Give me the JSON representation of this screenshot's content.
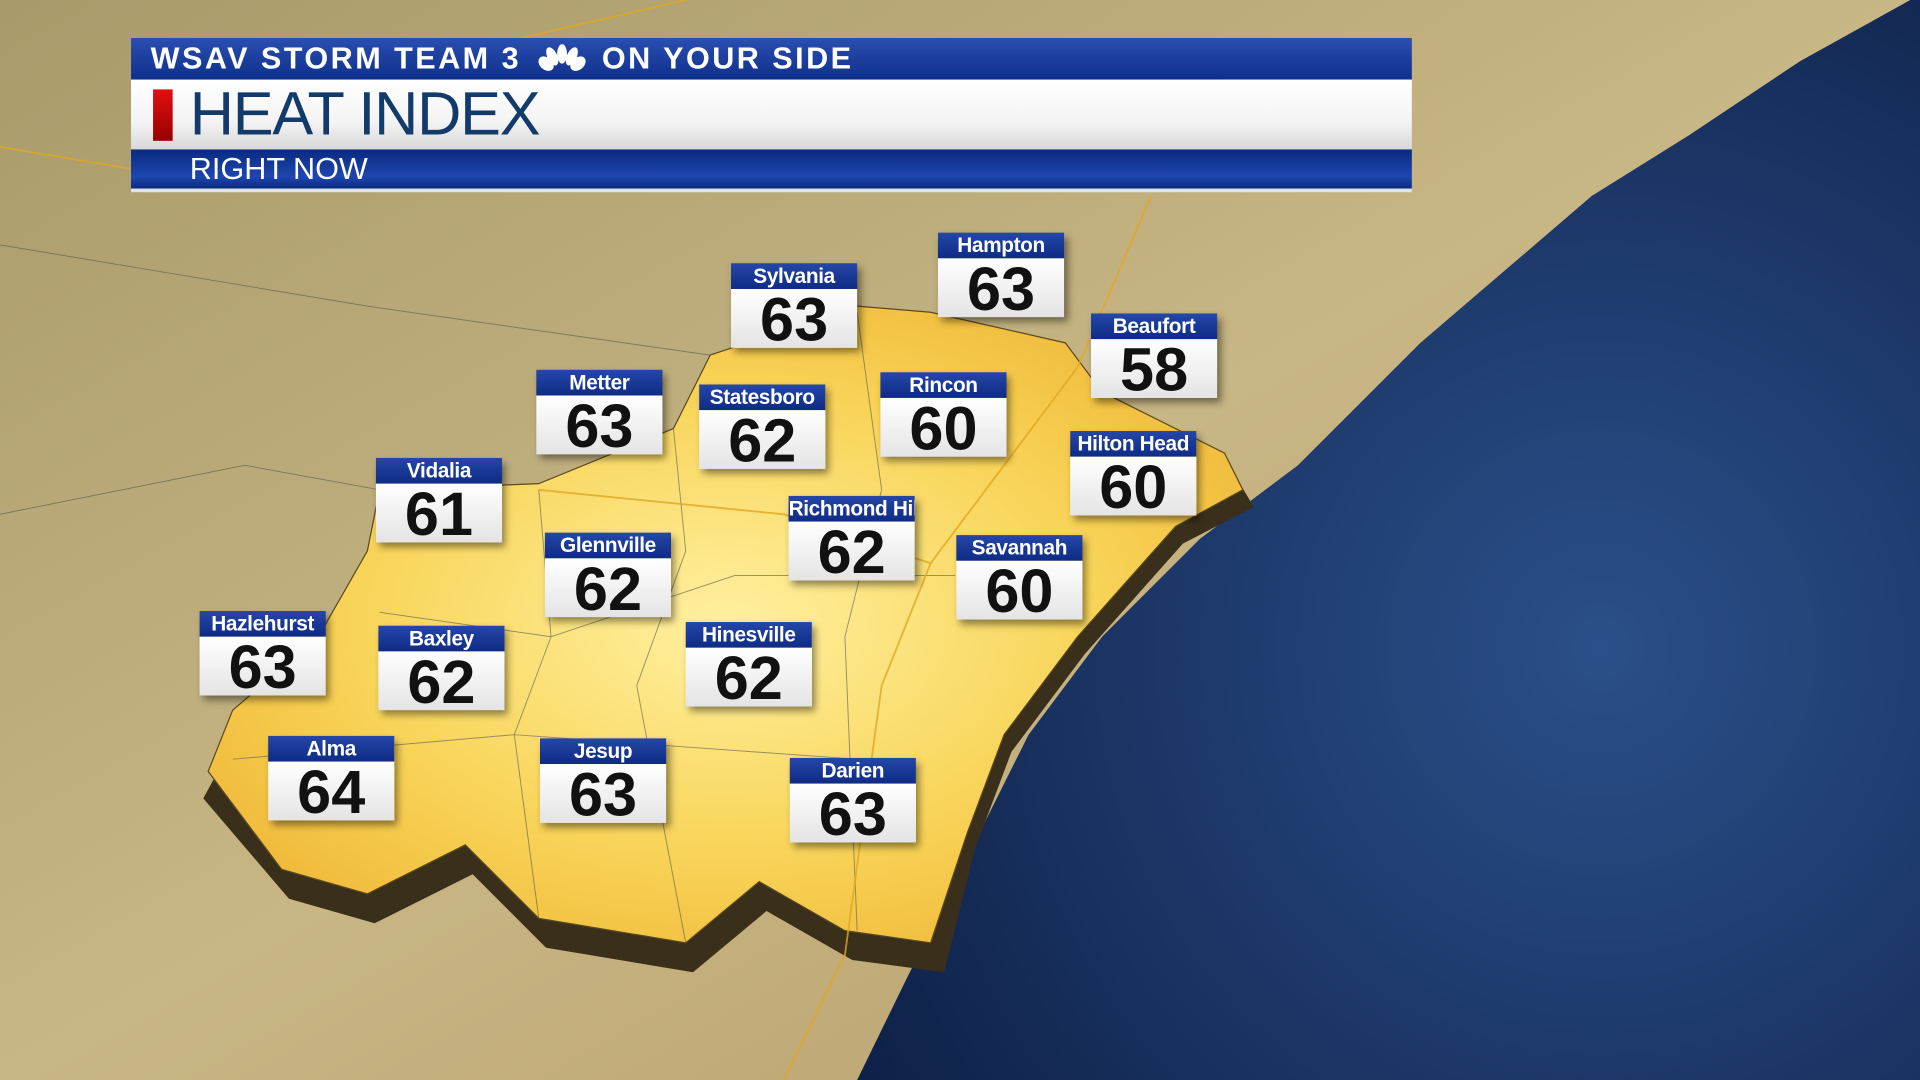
{
  "header": {
    "station": "WSAV STORM TEAM 3",
    "slogan": "ON YOUR SIDE",
    "logo_icon": "nbc-peacock-icon",
    "title": "HEAT INDEX",
    "subtitle": "RIGHT NOW",
    "colors": {
      "band": "#1a3da0",
      "title_text": "#123a6a",
      "accent": "#d01010"
    }
  },
  "map": {
    "colors": {
      "land": "#b9a878",
      "region": "#f7d050",
      "ocean": "#1c3a6e"
    }
  },
  "locations": [
    {
      "name": "Sylvania",
      "value": "63"
    },
    {
      "name": "Hampton",
      "value": "63"
    },
    {
      "name": "Beaufort",
      "value": "58"
    },
    {
      "name": "Metter",
      "value": "63"
    },
    {
      "name": "Statesboro",
      "value": "62"
    },
    {
      "name": "Rincon",
      "value": "60"
    },
    {
      "name": "Hilton Head",
      "value": "60"
    },
    {
      "name": "Vidalia",
      "value": "61"
    },
    {
      "name": "Richmond Hill",
      "value": "62"
    },
    {
      "name": "Glennville",
      "value": "62"
    },
    {
      "name": "Savannah",
      "value": "60"
    },
    {
      "name": "Hazlehurst",
      "value": "63"
    },
    {
      "name": "Baxley",
      "value": "62"
    },
    {
      "name": "Hinesville",
      "value": "62"
    },
    {
      "name": "Alma",
      "value": "64"
    },
    {
      "name": "Jesup",
      "value": "63"
    },
    {
      "name": "Darien",
      "value": "63"
    }
  ]
}
